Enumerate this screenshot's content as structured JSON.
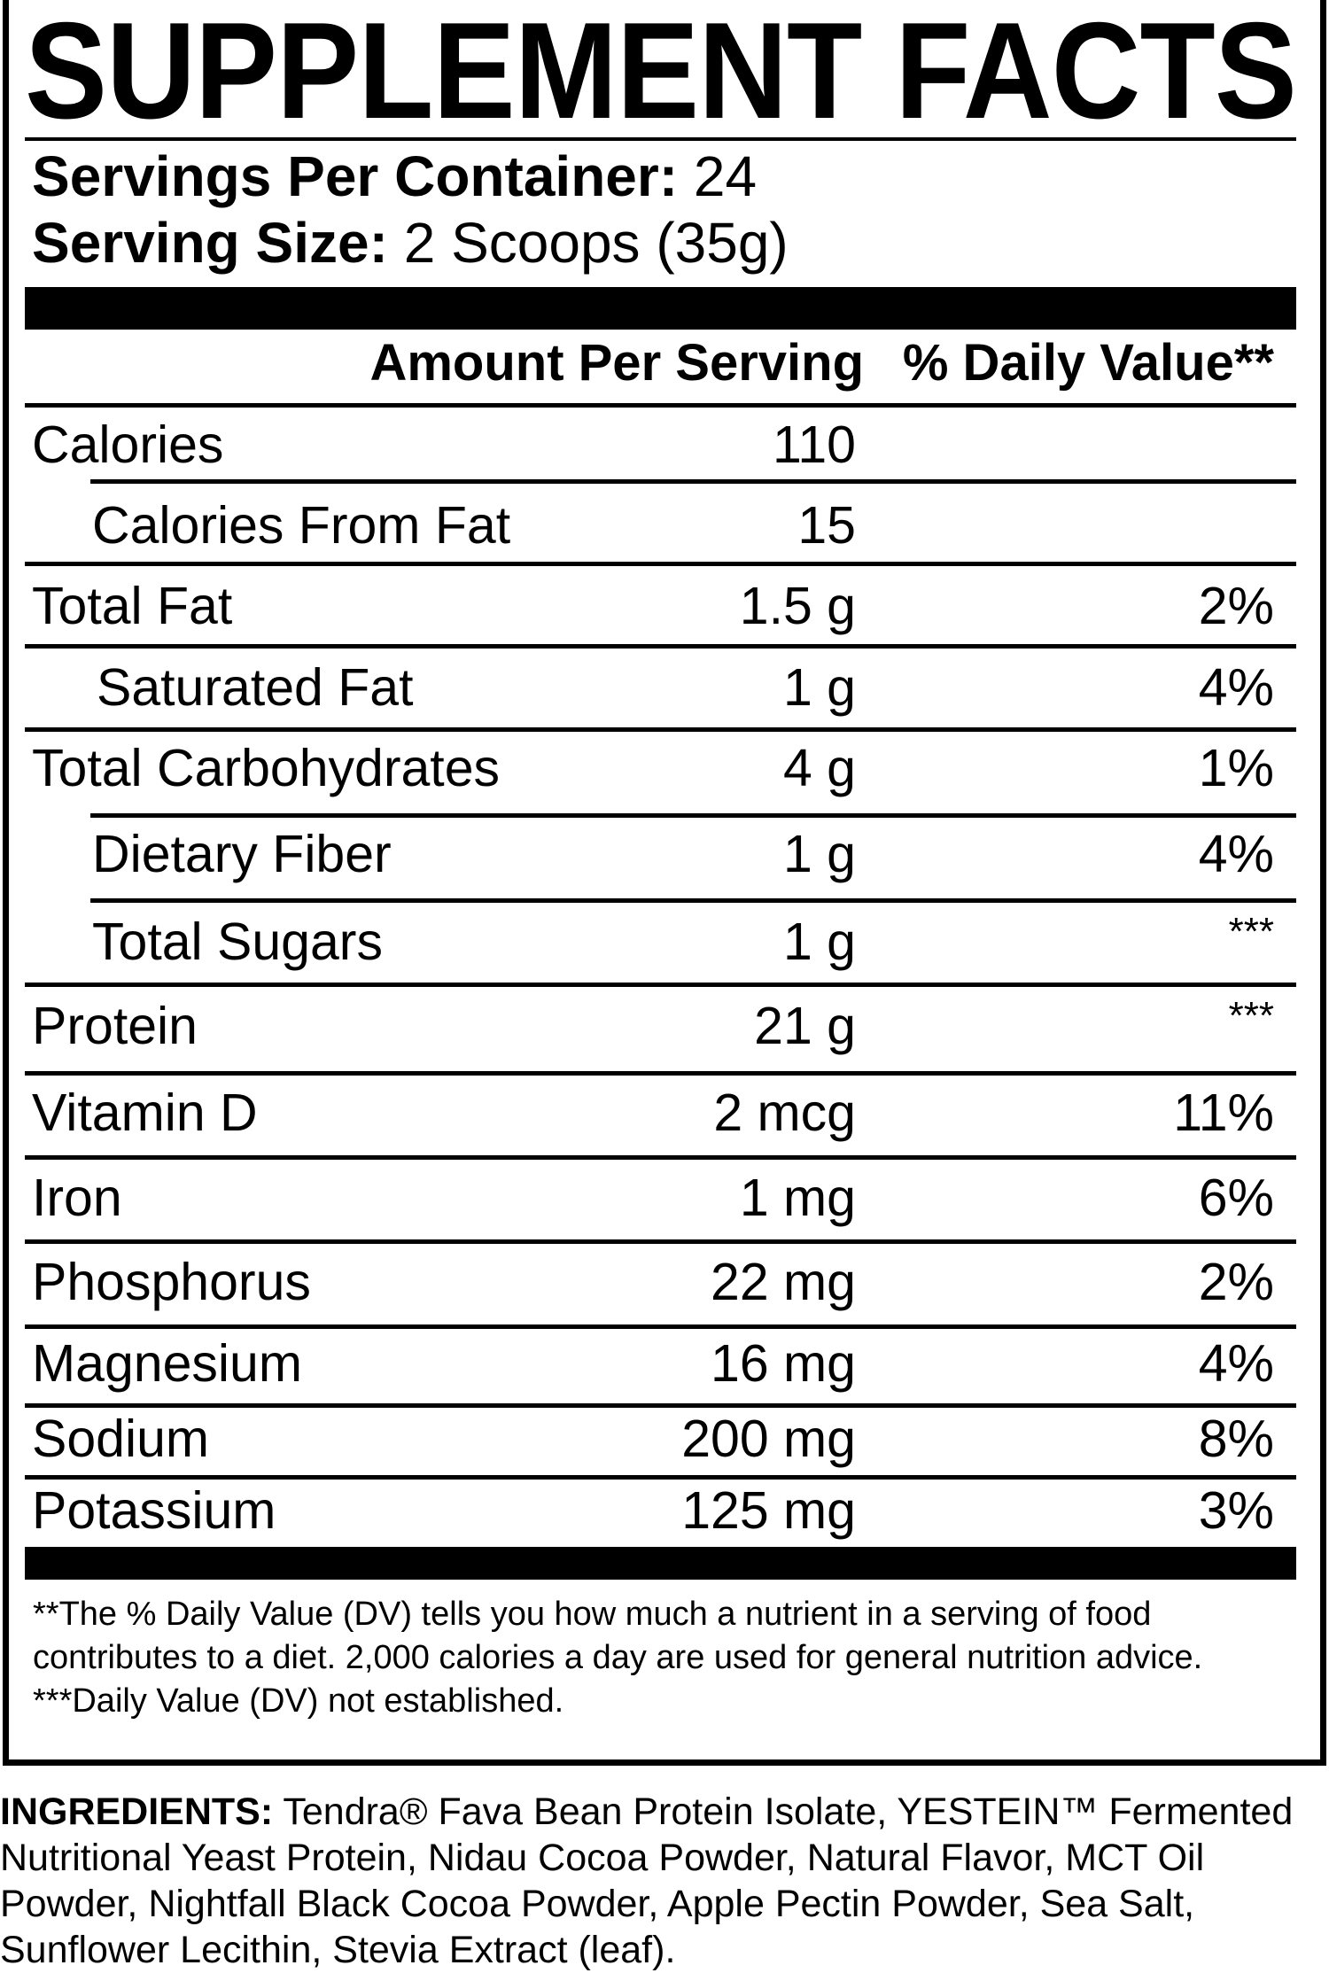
{
  "title": "SUPPLEMENT FACTS",
  "servings": {
    "per_container_label": "Servings Per Container:",
    "per_container_value": "24",
    "size_label": "Serving Size:",
    "size_value": "2 Scoops (35g)"
  },
  "header": {
    "amount": "Amount Per Serving",
    "daily_value": "% Daily Value**"
  },
  "nutrients": [
    {
      "name": "Calories",
      "amount": "110",
      "dv": ""
    },
    {
      "name": "Calories From Fat",
      "amount": "15",
      "dv": ""
    },
    {
      "name": "Total Fat",
      "amount": "1.5 g",
      "dv": "2%"
    },
    {
      "name": "Saturated Fat",
      "amount": "1 g",
      "dv": "4%"
    },
    {
      "name": "Total Carbohydrates",
      "amount": "4 g",
      "dv": "1%"
    },
    {
      "name": "Dietary Fiber",
      "amount": "1 g",
      "dv": "4%"
    },
    {
      "name": "Total Sugars",
      "amount": "1 g",
      "dv": "***"
    },
    {
      "name": "Protein",
      "amount": "21 g",
      "dv": "***"
    },
    {
      "name": "Vitamin D",
      "amount": "2 mcg",
      "dv": "11%"
    },
    {
      "name": "Iron",
      "amount": "1 mg",
      "dv": "6%"
    },
    {
      "name": "Phosphorus",
      "amount": "22 mg",
      "dv": "2%"
    },
    {
      "name": "Magnesium",
      "amount": "16 mg",
      "dv": "4%"
    },
    {
      "name": "Sodium",
      "amount": "200 mg",
      "dv": "8%"
    },
    {
      "name": "Potassium",
      "amount": "125 mg",
      "dv": "3%"
    }
  ],
  "footnotes": {
    "dv_note": "**The % Daily Value (DV) tells you how much a nutrient in a serving of food contributes to a diet. 2,000 calories a day are used for general nutrition advice.",
    "not_established": "***Daily Value (DV) not established."
  },
  "ingredients": {
    "label": "INGREDIENTS:",
    "text": "Tendra® Fava Bean Protein Isolate, YESTEIN™ Fermented Nutritional Yeast Protein, Nidau Cocoa Powder, Natural Flavor, MCT Oil Powder, Nightfall Black Cocoa Powder, Apple Pectin Powder, Sea Salt, Sunflower Lecithin, Stevia Extract (leaf)."
  }
}
